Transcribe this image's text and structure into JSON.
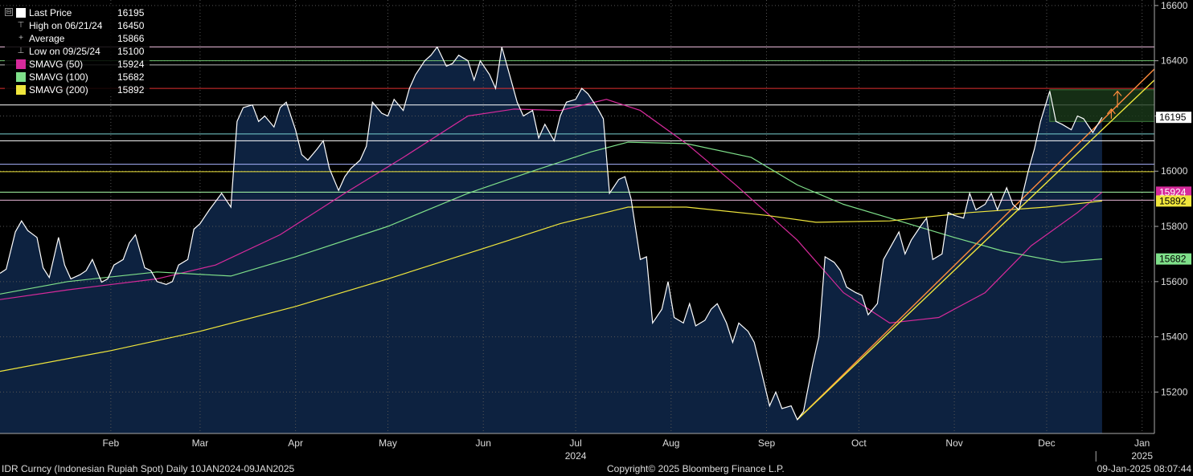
{
  "chart_data": {
    "type": "line",
    "ylim": [
      15050,
      16620
    ],
    "y_ticks": [
      15200,
      15400,
      15600,
      15800,
      16000,
      16200,
      16400,
      16600
    ],
    "x_ticks": [
      {
        "label": "Feb",
        "x": "2024-02-15"
      },
      {
        "label": "Mar",
        "x": "2024-03-15"
      },
      {
        "label": "Apr",
        "x": "2024-04-15"
      },
      {
        "label": "May",
        "x": "2024-05-15"
      },
      {
        "label": "Jun",
        "x": "2024-06-15"
      },
      {
        "label": "Jul",
        "x": "2024-07-15"
      },
      {
        "label": "Aug",
        "x": "2024-08-15"
      },
      {
        "label": "Sep",
        "x": "2024-09-15"
      },
      {
        "label": "Oct",
        "x": "2024-10-15"
      },
      {
        "label": "Nov",
        "x": "2024-11-15"
      },
      {
        "label": "Dec",
        "x": "2024-12-15"
      },
      {
        "label": "Jan",
        "x": "2025-01-15"
      }
    ],
    "year_labels": [
      {
        "label": "2024",
        "x": "2024-07-15"
      },
      {
        "label": "2025",
        "x": "2025-01-15"
      }
    ],
    "x_range": [
      "2024-01-10",
      "2025-01-19"
    ],
    "series": [
      {
        "name": "Last Price",
        "color": "#ffffff",
        "fill": "#0d2240",
        "points": [
          [
            "2024-01-10",
            15630
          ],
          [
            "2024-01-12",
            15645
          ],
          [
            "2024-01-15",
            15780
          ],
          [
            "2024-01-17",
            15820
          ],
          [
            "2024-01-19",
            15785
          ],
          [
            "2024-01-22",
            15760
          ],
          [
            "2024-01-24",
            15650
          ],
          [
            "2024-01-26",
            15615
          ],
          [
            "2024-01-29",
            15760
          ],
          [
            "2024-01-31",
            15660
          ],
          [
            "2024-02-02",
            15610
          ],
          [
            "2024-02-05",
            15625
          ],
          [
            "2024-02-07",
            15640
          ],
          [
            "2024-02-09",
            15680
          ],
          [
            "2024-02-12",
            15598
          ],
          [
            "2024-02-14",
            15610
          ],
          [
            "2024-02-16",
            15660
          ],
          [
            "2024-02-19",
            15680
          ],
          [
            "2024-02-21",
            15740
          ],
          [
            "2024-02-23",
            15770
          ],
          [
            "2024-02-26",
            15650
          ],
          [
            "2024-02-28",
            15640
          ],
          [
            "2024-03-01",
            15600
          ],
          [
            "2024-03-04",
            15590
          ],
          [
            "2024-03-06",
            15600
          ],
          [
            "2024-03-08",
            15660
          ],
          [
            "2024-03-11",
            15680
          ],
          [
            "2024-03-13",
            15790
          ],
          [
            "2024-03-15",
            15810
          ],
          [
            "2024-03-18",
            15860
          ],
          [
            "2024-03-20",
            15890
          ],
          [
            "2024-03-22",
            15920
          ],
          [
            "2024-03-25",
            15870
          ],
          [
            "2024-03-27",
            16180
          ],
          [
            "2024-03-29",
            16230
          ],
          [
            "2024-04-01",
            16240
          ],
          [
            "2024-04-03",
            16180
          ],
          [
            "2024-04-05",
            16200
          ],
          [
            "2024-04-08",
            16160
          ],
          [
            "2024-04-10",
            16230
          ],
          [
            "2024-04-12",
            16250
          ],
          [
            "2024-04-15",
            16150
          ],
          [
            "2024-04-17",
            16060
          ],
          [
            "2024-04-19",
            16040
          ],
          [
            "2024-04-22",
            16080
          ],
          [
            "2024-04-24",
            16110
          ],
          [
            "2024-04-26",
            16010
          ],
          [
            "2024-04-29",
            15930
          ],
          [
            "2024-05-01",
            15980
          ],
          [
            "2024-05-03",
            16010
          ],
          [
            "2024-05-06",
            16040
          ],
          [
            "2024-05-08",
            16090
          ],
          [
            "2024-05-10",
            16250
          ],
          [
            "2024-05-13",
            16210
          ],
          [
            "2024-05-15",
            16200
          ],
          [
            "2024-05-17",
            16260
          ],
          [
            "2024-05-20",
            16220
          ],
          [
            "2024-05-22",
            16300
          ],
          [
            "2024-05-24",
            16350
          ],
          [
            "2024-05-27",
            16400
          ],
          [
            "2024-05-29",
            16420
          ],
          [
            "2024-05-31",
            16450
          ],
          [
            "2024-06-03",
            16380
          ],
          [
            "2024-06-05",
            16390
          ],
          [
            "2024-06-07",
            16420
          ],
          [
            "2024-06-10",
            16400
          ],
          [
            "2024-06-12",
            16330
          ],
          [
            "2024-06-14",
            16400
          ],
          [
            "2024-06-17",
            16350
          ],
          [
            "2024-06-19",
            16300
          ],
          [
            "2024-06-21",
            16450
          ],
          [
            "2024-06-24",
            16330
          ],
          [
            "2024-06-26",
            16250
          ],
          [
            "2024-06-28",
            16200
          ],
          [
            "2024-07-01",
            16220
          ],
          [
            "2024-07-03",
            16120
          ],
          [
            "2024-07-05",
            16170
          ],
          [
            "2024-07-08",
            16110
          ],
          [
            "2024-07-10",
            16200
          ],
          [
            "2024-07-12",
            16250
          ],
          [
            "2024-07-15",
            16260
          ],
          [
            "2024-07-17",
            16300
          ],
          [
            "2024-07-19",
            16280
          ],
          [
            "2024-07-22",
            16230
          ],
          [
            "2024-07-24",
            16190
          ],
          [
            "2024-07-26",
            15920
          ],
          [
            "2024-07-29",
            15970
          ],
          [
            "2024-07-31",
            15980
          ],
          [
            "2024-08-02",
            15900
          ],
          [
            "2024-08-05",
            15680
          ],
          [
            "2024-08-07",
            15690
          ],
          [
            "2024-08-09",
            15450
          ],
          [
            "2024-08-12",
            15500
          ],
          [
            "2024-08-14",
            15600
          ],
          [
            "2024-08-16",
            15470
          ],
          [
            "2024-08-19",
            15450
          ],
          [
            "2024-08-21",
            15520
          ],
          [
            "2024-08-23",
            15440
          ],
          [
            "2024-08-26",
            15460
          ],
          [
            "2024-08-28",
            15500
          ],
          [
            "2024-08-30",
            15520
          ],
          [
            "2024-09-02",
            15450
          ],
          [
            "2024-09-04",
            15380
          ],
          [
            "2024-09-06",
            15450
          ],
          [
            "2024-09-09",
            15420
          ],
          [
            "2024-09-11",
            15380
          ],
          [
            "2024-09-13",
            15290
          ],
          [
            "2024-09-16",
            15150
          ],
          [
            "2024-09-18",
            15200
          ],
          [
            "2024-09-20",
            15140
          ],
          [
            "2024-09-23",
            15150
          ],
          [
            "2024-09-25",
            15100
          ],
          [
            "2024-09-27",
            15130
          ],
          [
            "2024-09-30",
            15300
          ],
          [
            "2024-10-02",
            15400
          ],
          [
            "2024-10-04",
            15690
          ],
          [
            "2024-10-07",
            15670
          ],
          [
            "2024-10-09",
            15640
          ],
          [
            "2024-10-11",
            15580
          ],
          [
            "2024-10-14",
            15560
          ],
          [
            "2024-10-16",
            15550
          ],
          [
            "2024-10-18",
            15480
          ],
          [
            "2024-10-21",
            15520
          ],
          [
            "2024-10-23",
            15680
          ],
          [
            "2024-10-25",
            15720
          ],
          [
            "2024-10-28",
            15780
          ],
          [
            "2024-10-30",
            15700
          ],
          [
            "2024-11-01",
            15750
          ],
          [
            "2024-11-04",
            15800
          ],
          [
            "2024-11-06",
            15830
          ],
          [
            "2024-11-08",
            15680
          ],
          [
            "2024-11-11",
            15700
          ],
          [
            "2024-11-13",
            15850
          ],
          [
            "2024-11-15",
            15840
          ],
          [
            "2024-11-18",
            15830
          ],
          [
            "2024-11-20",
            15920
          ],
          [
            "2024-11-22",
            15860
          ],
          [
            "2024-11-25",
            15880
          ],
          [
            "2024-11-27",
            15920
          ],
          [
            "2024-11-29",
            15860
          ],
          [
            "2024-12-02",
            15940
          ],
          [
            "2024-12-04",
            15880
          ],
          [
            "2024-12-06",
            15860
          ],
          [
            "2024-12-09",
            16000
          ],
          [
            "2024-12-11",
            16080
          ],
          [
            "2024-12-13",
            16180
          ],
          [
            "2024-12-16",
            16290
          ],
          [
            "2024-12-18",
            16180
          ],
          [
            "2024-12-20",
            16170
          ],
          [
            "2024-12-23",
            16150
          ],
          [
            "2024-12-25",
            16200
          ],
          [
            "2024-12-27",
            16190
          ],
          [
            "2024-12-30",
            16140
          ],
          [
            "2025-01-02",
            16195
          ]
        ]
      },
      {
        "name": "SMAVG (50)",
        "color": "#d62a9b",
        "points": [
          [
            "2024-01-10",
            15535
          ],
          [
            "2024-02-01",
            15570
          ],
          [
            "2024-03-01",
            15610
          ],
          [
            "2024-03-20",
            15660
          ],
          [
            "2024-04-10",
            15770
          ],
          [
            "2024-05-01",
            15920
          ],
          [
            "2024-05-20",
            16050
          ],
          [
            "2024-06-10",
            16200
          ],
          [
            "2024-06-25",
            16225
          ],
          [
            "2024-07-10",
            16220
          ],
          [
            "2024-07-25",
            16260
          ],
          [
            "2024-08-05",
            16220
          ],
          [
            "2024-08-20",
            16100
          ],
          [
            "2024-09-05",
            15950
          ],
          [
            "2024-09-25",
            15750
          ],
          [
            "2024-10-10",
            15560
          ],
          [
            "2024-10-25",
            15450
          ],
          [
            "2024-11-10",
            15470
          ],
          [
            "2024-11-25",
            15560
          ],
          [
            "2024-12-10",
            15730
          ],
          [
            "2024-12-25",
            15850
          ],
          [
            "2025-01-02",
            15924
          ]
        ]
      },
      {
        "name": "SMAVG (100)",
        "color": "#7fe08a",
        "points": [
          [
            "2024-01-10",
            15555
          ],
          [
            "2024-02-01",
            15600
          ],
          [
            "2024-03-01",
            15635
          ],
          [
            "2024-03-25",
            15620
          ],
          [
            "2024-04-15",
            15690
          ],
          [
            "2024-05-15",
            15800
          ],
          [
            "2024-06-10",
            15920
          ],
          [
            "2024-07-01",
            16000
          ],
          [
            "2024-07-20",
            16070
          ],
          [
            "2024-08-01",
            16105
          ],
          [
            "2024-08-20",
            16100
          ],
          [
            "2024-09-10",
            16050
          ],
          [
            "2024-09-25",
            15950
          ],
          [
            "2024-10-10",
            15880
          ],
          [
            "2024-10-25",
            15830
          ],
          [
            "2024-11-15",
            15760
          ],
          [
            "2024-12-01",
            15710
          ],
          [
            "2024-12-20",
            15670
          ],
          [
            "2025-01-02",
            15682
          ]
        ]
      },
      {
        "name": "SMAVG (200)",
        "color": "#f0e63c",
        "points": [
          [
            "2024-01-10",
            15275
          ],
          [
            "2024-02-15",
            15350
          ],
          [
            "2024-03-15",
            15420
          ],
          [
            "2024-04-15",
            15510
          ],
          [
            "2024-05-15",
            15610
          ],
          [
            "2024-06-15",
            15720
          ],
          [
            "2024-07-10",
            15810
          ],
          [
            "2024-08-01",
            15870
          ],
          [
            "2024-08-20",
            15870
          ],
          [
            "2024-09-15",
            15840
          ],
          [
            "2024-10-01",
            15815
          ],
          [
            "2024-10-25",
            15820
          ],
          [
            "2024-11-20",
            15850
          ],
          [
            "2024-12-15",
            15870
          ],
          [
            "2025-01-02",
            15892
          ]
        ]
      }
    ],
    "h_lines": [
      {
        "y": 16450,
        "color": "#e8b8d8"
      },
      {
        "y": 16400,
        "color": "#6ec26e"
      },
      {
        "y": 16385,
        "color": "#bbbbbb"
      },
      {
        "y": 16300,
        "color": "#e03030"
      },
      {
        "y": 16240,
        "color": "#ffffff"
      },
      {
        "y": 16135,
        "color": "#7ad2d2"
      },
      {
        "y": 16110,
        "color": "#ffffff"
      },
      {
        "y": 16025,
        "color": "#aab4ff"
      },
      {
        "y": 15998,
        "color": "#f0e63c"
      },
      {
        "y": 15924,
        "color": "#aaffaa"
      },
      {
        "y": 15895,
        "color": "#e8b8d8"
      }
    ],
    "trend_lines": [
      {
        "from": [
          "2024-09-25",
          15100
        ],
        "to": [
          "2025-01-19",
          16370
        ],
        "color": "#ff8c3c"
      },
      {
        "from": [
          "2024-09-25",
          15100
        ],
        "to": [
          "2025-01-19",
          16330
        ],
        "color": "#f0e63c"
      }
    ],
    "box": {
      "x0": "2024-12-16",
      "x1": "2025-01-19",
      "y0": 16180,
      "y1": 16295,
      "fill": "#1a3a1a",
      "stroke": "#3c7a3c"
    },
    "arrows": [
      {
        "x": "2025-01-07",
        "y0": 16230,
        "y1": 16290,
        "color": "#ff8c3c"
      },
      {
        "x": "2025-01-05",
        "y0": 16190,
        "y1": 16225,
        "color": "#ff8c3c"
      }
    ],
    "axis_badges": [
      {
        "value": 16195,
        "text": "16195",
        "bg": "#ffffff",
        "fg": "#000000"
      },
      {
        "value": 15924,
        "text": "15924",
        "bg": "#d62a9b",
        "fg": "#ffffff"
      },
      {
        "value": 15892,
        "text": "15892",
        "bg": "#f0e63c",
        "fg": "#000000"
      },
      {
        "value": 15682,
        "text": "15682",
        "bg": "#7fe08a",
        "fg": "#000000"
      }
    ]
  },
  "legend": {
    "collapse_glyph": "⊟",
    "rows": [
      {
        "label": "Last Price",
        "value": "16195",
        "swatch": "#ffffff",
        "glyph": ""
      },
      {
        "label": "High on 06/21/24",
        "value": "16450",
        "swatch": "",
        "glyph": "⊤"
      },
      {
        "label": "Average",
        "value": "15866",
        "swatch": "",
        "glyph": "+"
      },
      {
        "label": "Low on 09/25/24",
        "value": "15100",
        "swatch": "",
        "glyph": "⊥"
      },
      {
        "label": "SMAVG (50)",
        "value": "15924",
        "swatch": "#d62a9b",
        "glyph": ""
      },
      {
        "label": "SMAVG (100)",
        "value": "15682",
        "swatch": "#7fe08a",
        "glyph": ""
      },
      {
        "label": "SMAVG (200)",
        "value": "15892",
        "swatch": "#f0e63c",
        "glyph": ""
      }
    ]
  },
  "footer": {
    "left": "IDR Curncy (Indonesian Rupiah Spot)  Daily 10JAN2024-09JAN2025",
    "center": "Copyright© 2025 Bloomberg Finance L.P.",
    "right": "09-Jan-2025 08:07:44"
  }
}
